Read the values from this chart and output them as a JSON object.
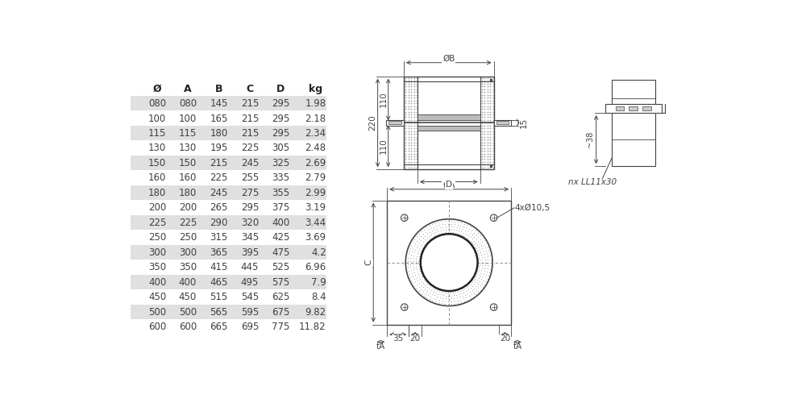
{
  "table_headers": [
    "Ø",
    "A",
    "B",
    "C",
    "D",
    "kg"
  ],
  "table_data": [
    [
      "080",
      "080",
      "145",
      "215",
      "295",
      "1.98"
    ],
    [
      "100",
      "100",
      "165",
      "215",
      "295",
      "2.18"
    ],
    [
      "115",
      "115",
      "180",
      "215",
      "295",
      "2.34"
    ],
    [
      "130",
      "130",
      "195",
      "225",
      "305",
      "2.48"
    ],
    [
      "150",
      "150",
      "215",
      "245",
      "325",
      "2.69"
    ],
    [
      "160",
      "160",
      "225",
      "255",
      "335",
      "2.79"
    ],
    [
      "180",
      "180",
      "245",
      "275",
      "355",
      "2.99"
    ],
    [
      "200",
      "200",
      "265",
      "295",
      "375",
      "3.19"
    ],
    [
      "225",
      "225",
      "290",
      "320",
      "400",
      "3.44"
    ],
    [
      "250",
      "250",
      "315",
      "345",
      "425",
      "3.69"
    ],
    [
      "300",
      "300",
      "365",
      "395",
      "475",
      "4.2"
    ],
    [
      "350",
      "350",
      "415",
      "445",
      "525",
      "6.96"
    ],
    [
      "400",
      "400",
      "465",
      "495",
      "575",
      "7.9"
    ],
    [
      "450",
      "450",
      "515",
      "545",
      "625",
      "8.4"
    ],
    [
      "500",
      "500",
      "565",
      "595",
      "675",
      "9.82"
    ],
    [
      "600",
      "600",
      "665",
      "695",
      "775",
      "11.82"
    ]
  ],
  "shaded_rows": [
    0,
    2,
    4,
    6,
    8,
    10,
    12,
    14
  ],
  "bg_color": "#ffffff",
  "shade_color": "#e0e0e0",
  "text_color": "#404040",
  "header_text_color": "#222222",
  "line_color": "#444444",
  "dim_color": "#444444"
}
